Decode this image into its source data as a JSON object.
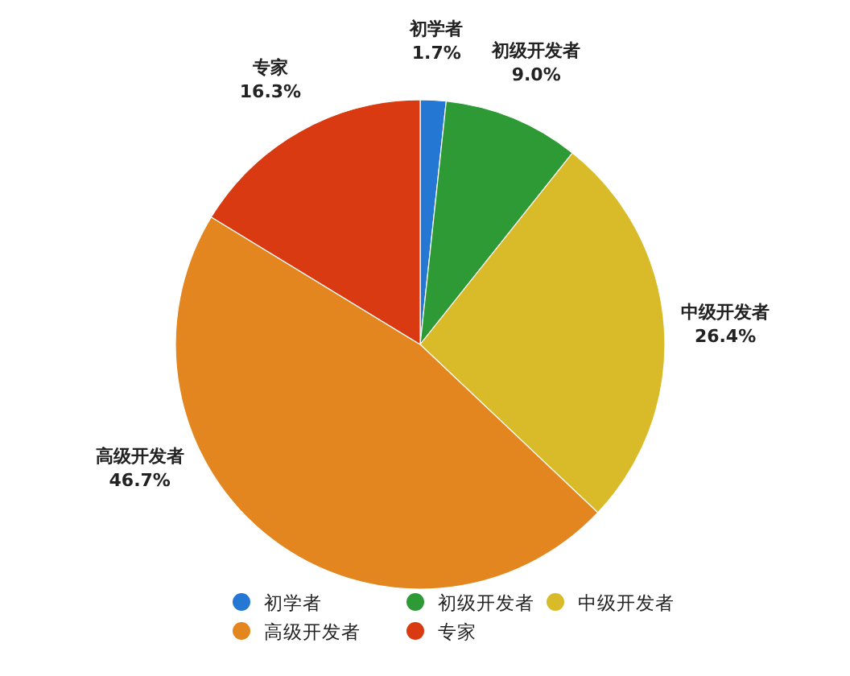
{
  "chart_data": {
    "type": "pie",
    "categories": [
      "初学者",
      "初级开发者",
      "中级开发者",
      "高级开发者",
      "专家"
    ],
    "values": [
      1.7,
      9.0,
      26.4,
      46.7,
      16.3
    ],
    "value_labels": [
      "1.7%",
      "9.0%",
      "26.4%",
      "46.7%",
      "16.3%"
    ],
    "colors": [
      "#2478d4",
      "#2e9a35",
      "#d9bb2a",
      "#e3861f",
      "#d93a12"
    ],
    "legend": "bottom"
  }
}
